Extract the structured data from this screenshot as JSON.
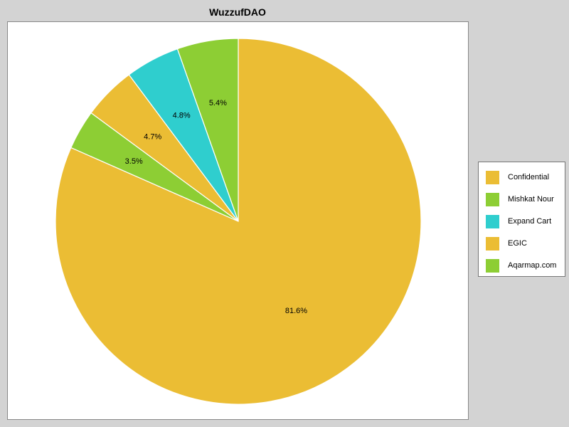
{
  "chart_data": {
    "type": "pie",
    "title": "WuzzufDAO",
    "start_angle_deg": 90,
    "direction": "clockwise",
    "legend_position": "right",
    "slices": [
      {
        "label": "Confidential",
        "value": 81.6,
        "display": "81.6%",
        "color": "#ebbd34"
      },
      {
        "label": "Mishkat Nour",
        "value": 3.5,
        "display": "3.5%",
        "color": "#8dce34"
      },
      {
        "label": "EGIC",
        "value": 4.7,
        "display": "4.7%",
        "color": "#ebbd34"
      },
      {
        "label": "Expand Cart",
        "value": 4.8,
        "display": "4.8%",
        "color": "#2fcece"
      },
      {
        "label": "Aqarmap.com",
        "value": 5.4,
        "display": "5.4%",
        "color": "#8dce34"
      }
    ],
    "legend": [
      {
        "label": "Confidential",
        "color": "#ebbd34"
      },
      {
        "label": "Mishkat Nour",
        "color": "#8dce34"
      },
      {
        "label": "Expand Cart",
        "color": "#2fcece"
      },
      {
        "label": "EGIC",
        "color": "#ebbd34"
      },
      {
        "label": "Aqarmap.com",
        "color": "#8dce34"
      }
    ]
  }
}
